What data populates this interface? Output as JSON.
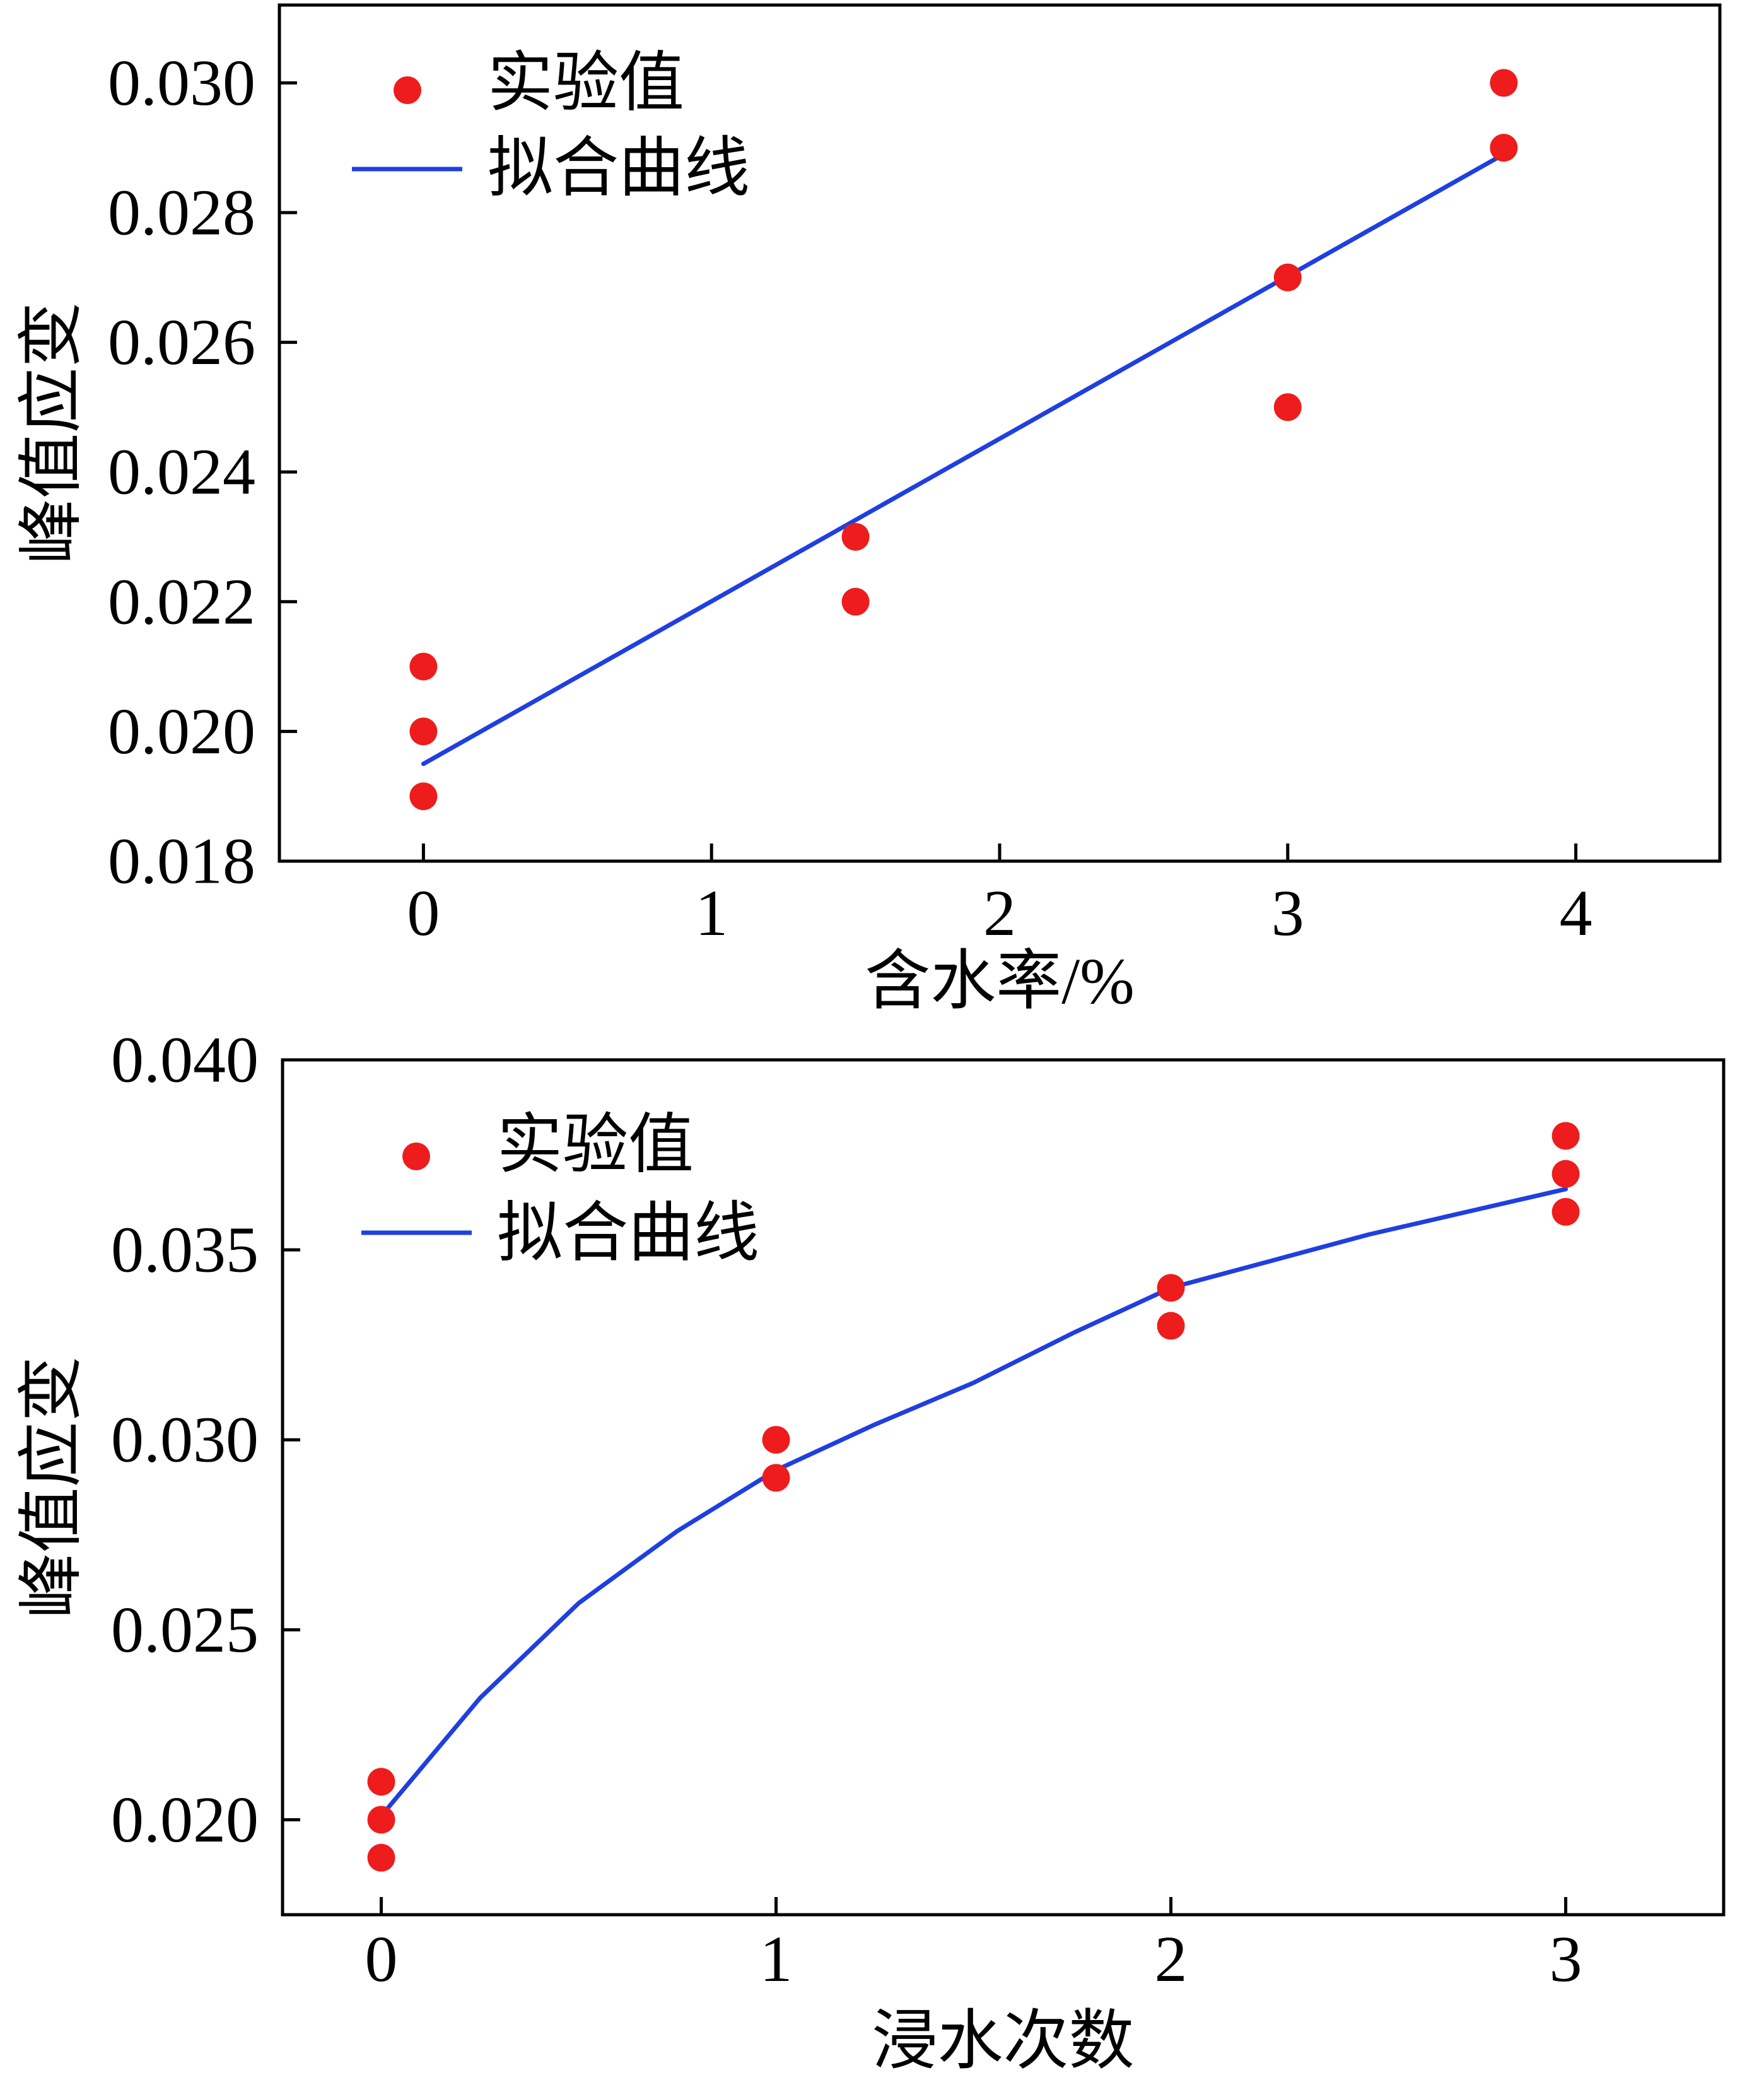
{
  "chart_data": [
    {
      "type": "scatter",
      "xlabel": "含水率/%",
      "ylabel": "峰值应变",
      "xlim": [
        -0.5,
        4.5
      ],
      "ylim": [
        0.018,
        0.0312
      ],
      "xticks": [
        0,
        1,
        2,
        3,
        4
      ],
      "xtick_labels": [
        "0",
        "1",
        "2",
        "3",
        "4"
      ],
      "yticks": [
        0.018,
        0.02,
        0.022,
        0.024,
        0.026,
        0.028,
        0.03
      ],
      "ytick_labels": [
        "0.018",
        "0.020",
        "0.022",
        "0.024",
        "0.026",
        "0.028",
        "0.030"
      ],
      "grid": false,
      "legend_position": "top-left",
      "series": [
        {
          "name": "实验值",
          "kind": "points",
          "color": "#ee1c1c",
          "points": [
            [
              0,
              0.021
            ],
            [
              0,
              0.02
            ],
            [
              0,
              0.019
            ],
            [
              1.5,
              0.023
            ],
            [
              1.5,
              0.022
            ],
            [
              3,
              0.027
            ],
            [
              3,
              0.025
            ],
            [
              3.75,
              0.03
            ],
            [
              3.75,
              0.029
            ]
          ]
        },
        {
          "name": "拟合曲线",
          "kind": "line",
          "color": "#1f3fe0",
          "points": [
            [
              0,
              0.0195
            ],
            [
              3.75,
              0.0289
            ]
          ]
        }
      ]
    },
    {
      "type": "scatter",
      "xlabel": "浸水次数",
      "ylabel": "峰值应变",
      "xlim": [
        -0.25,
        3.4
      ],
      "ylim": [
        0.0175,
        0.04
      ],
      "xticks": [
        0,
        1,
        2,
        3
      ],
      "xtick_labels": [
        "0",
        "1",
        "2",
        "3"
      ],
      "yticks": [
        0.02,
        0.025,
        0.03,
        0.035,
        0.04
      ],
      "ytick_labels": [
        "0.020",
        "0.025",
        "0.030",
        "0.035",
        "0.040"
      ],
      "grid": false,
      "legend_position": "top-left",
      "series": [
        {
          "name": "实验值",
          "kind": "points",
          "color": "#ee1c1c",
          "points": [
            [
              0,
              0.021
            ],
            [
              0,
              0.02
            ],
            [
              0,
              0.019
            ],
            [
              1,
              0.03
            ],
            [
              1,
              0.029
            ],
            [
              2,
              0.034
            ],
            [
              2,
              0.033
            ],
            [
              3,
              0.038
            ],
            [
              3,
              0.037
            ],
            [
              3,
              0.036
            ]
          ]
        },
        {
          "name": "拟合曲线",
          "kind": "line",
          "color": "#1f3fe0",
          "points": [
            [
              0,
              0.0201
            ],
            [
              0.25,
              0.0232
            ],
            [
              0.5,
              0.0257
            ],
            [
              0.75,
              0.0276
            ],
            [
              1,
              0.0292
            ],
            [
              1.25,
              0.0304
            ],
            [
              1.5,
              0.0315
            ],
            [
              1.75,
              0.0328
            ],
            [
              2,
              0.034
            ],
            [
              2.25,
              0.0347
            ],
            [
              2.5,
              0.0354
            ],
            [
              2.75,
              0.036
            ],
            [
              3,
              0.0366
            ]
          ]
        }
      ]
    }
  ]
}
